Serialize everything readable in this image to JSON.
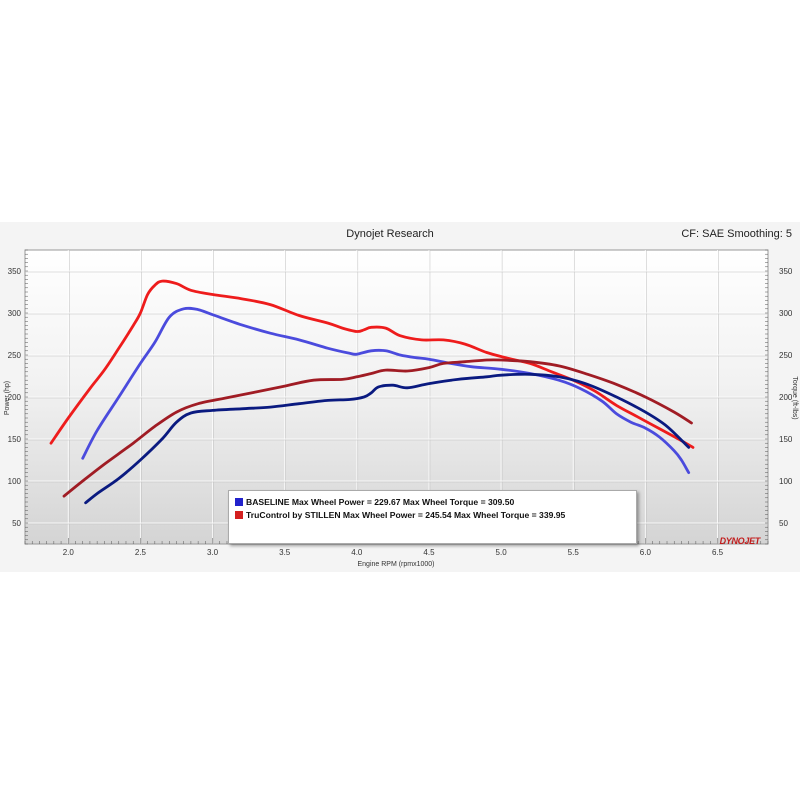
{
  "header": {
    "title": "Dynojet Research",
    "cf_text": "CF: SAE Smoothing: 5"
  },
  "logo_text": "DYNOJET",
  "legend": [
    {
      "text": "BASELINE Max Wheel Power = 229.67 Max Wheel Torque = 309.50",
      "color": "#2222cc"
    },
    {
      "text": "TruControl by STILLEN Max Wheel Power = 245.54 Max Wheel Torque = 339.95",
      "color": "#d42020"
    }
  ],
  "chart_data": {
    "type": "line",
    "title": "Dynojet Research",
    "xlabel": "Engine RPM (rpmx1000)",
    "ylabel_left": "Power (hp)",
    "ylabel_right": "Torque (ft-lbs)",
    "xlim": [
      1.7,
      6.85
    ],
    "ylim_left": [
      25,
      375
    ],
    "ylim_right": [
      25,
      375
    ],
    "x_ticks": [
      "2.0",
      "2.5",
      "3.0",
      "3.5",
      "4.0",
      "4.5",
      "5.0",
      "5.5",
      "6.0",
      "6.5"
    ],
    "y_ticks_left": [
      "50",
      "100",
      "150",
      "200",
      "250",
      "300",
      "350"
    ],
    "y_ticks_right": [
      "50",
      "100",
      "150",
      "200",
      "250",
      "300",
      "350"
    ],
    "grid": true,
    "series": [
      {
        "name": "TruControl by STILLEN",
        "metric": "Torque",
        "color": "#ee1c1c",
        "points": [
          [
            1.88,
            145
          ],
          [
            2.0,
            175
          ],
          [
            2.15,
            210
          ],
          [
            2.25,
            232
          ],
          [
            2.35,
            258
          ],
          [
            2.45,
            285
          ],
          [
            2.5,
            300
          ],
          [
            2.55,
            322
          ],
          [
            2.6,
            333
          ],
          [
            2.65,
            338
          ],
          [
            2.75,
            335
          ],
          [
            2.85,
            327
          ],
          [
            3.0,
            322
          ],
          [
            3.2,
            317
          ],
          [
            3.4,
            310
          ],
          [
            3.6,
            297
          ],
          [
            3.8,
            288
          ],
          [
            3.9,
            282
          ],
          [
            4.0,
            278
          ],
          [
            4.05,
            280
          ],
          [
            4.1,
            283
          ],
          [
            4.2,
            282
          ],
          [
            4.3,
            273
          ],
          [
            4.45,
            268
          ],
          [
            4.6,
            268
          ],
          [
            4.75,
            263
          ],
          [
            4.9,
            253
          ],
          [
            5.05,
            246
          ],
          [
            5.2,
            240
          ],
          [
            5.35,
            230
          ],
          [
            5.5,
            220
          ],
          [
            5.65,
            207
          ],
          [
            5.8,
            190
          ],
          [
            5.95,
            176
          ],
          [
            6.1,
            162
          ],
          [
            6.25,
            148
          ],
          [
            6.33,
            140
          ]
        ]
      },
      {
        "name": "BASELINE",
        "metric": "Torque",
        "color": "#4b4bdd",
        "points": [
          [
            2.1,
            127
          ],
          [
            2.2,
            160
          ],
          [
            2.35,
            200
          ],
          [
            2.5,
            240
          ],
          [
            2.6,
            265
          ],
          [
            2.7,
            295
          ],
          [
            2.8,
            305
          ],
          [
            2.9,
            304
          ],
          [
            3.0,
            298
          ],
          [
            3.2,
            286
          ],
          [
            3.4,
            276
          ],
          [
            3.6,
            268
          ],
          [
            3.8,
            258
          ],
          [
            3.95,
            252
          ],
          [
            4.0,
            251
          ],
          [
            4.1,
            255
          ],
          [
            4.2,
            255
          ],
          [
            4.3,
            250
          ],
          [
            4.4,
            247
          ],
          [
            4.5,
            245
          ],
          [
            4.65,
            240
          ],
          [
            4.8,
            236
          ],
          [
            5.0,
            233
          ],
          [
            5.2,
            228
          ],
          [
            5.4,
            220
          ],
          [
            5.55,
            210
          ],
          [
            5.7,
            195
          ],
          [
            5.8,
            180
          ],
          [
            5.9,
            170
          ],
          [
            6.0,
            163
          ],
          [
            6.1,
            152
          ],
          [
            6.2,
            136
          ],
          [
            6.25,
            125
          ],
          [
            6.3,
            110
          ]
        ]
      },
      {
        "name": "TruControl by STILLEN",
        "metric": "Power",
        "color": "#a01c24",
        "points": [
          [
            1.97,
            82
          ],
          [
            2.1,
            100
          ],
          [
            2.25,
            120
          ],
          [
            2.45,
            145
          ],
          [
            2.6,
            165
          ],
          [
            2.75,
            182
          ],
          [
            2.9,
            192
          ],
          [
            3.1,
            199
          ],
          [
            3.3,
            206
          ],
          [
            3.5,
            213
          ],
          [
            3.7,
            220
          ],
          [
            3.9,
            221
          ],
          [
            4.0,
            224
          ],
          [
            4.1,
            228
          ],
          [
            4.2,
            232
          ],
          [
            4.35,
            231
          ],
          [
            4.5,
            235
          ],
          [
            4.6,
            240
          ],
          [
            4.75,
            242
          ],
          [
            4.9,
            244
          ],
          [
            5.0,
            244
          ],
          [
            5.2,
            242
          ],
          [
            5.4,
            237
          ],
          [
            5.6,
            227
          ],
          [
            5.8,
            215
          ],
          [
            6.0,
            200
          ],
          [
            6.2,
            182
          ],
          [
            6.32,
            169
          ]
        ]
      },
      {
        "name": "BASELINE",
        "metric": "Power",
        "color": "#0a1a80",
        "points": [
          [
            2.12,
            74
          ],
          [
            2.2,
            85
          ],
          [
            2.35,
            103
          ],
          [
            2.5,
            125
          ],
          [
            2.65,
            150
          ],
          [
            2.75,
            170
          ],
          [
            2.85,
            181
          ],
          [
            3.0,
            184
          ],
          [
            3.2,
            186
          ],
          [
            3.4,
            188
          ],
          [
            3.6,
            192
          ],
          [
            3.8,
            196
          ],
          [
            3.95,
            197
          ],
          [
            4.05,
            200
          ],
          [
            4.1,
            205
          ],
          [
            4.15,
            212
          ],
          [
            4.25,
            214
          ],
          [
            4.35,
            211
          ],
          [
            4.5,
            216
          ],
          [
            4.7,
            221
          ],
          [
            4.9,
            224
          ],
          [
            5.0,
            226
          ],
          [
            5.2,
            227
          ],
          [
            5.4,
            224
          ],
          [
            5.6,
            215
          ],
          [
            5.8,
            200
          ],
          [
            6.0,
            182
          ],
          [
            6.15,
            165
          ],
          [
            6.3,
            140
          ]
        ]
      }
    ]
  }
}
